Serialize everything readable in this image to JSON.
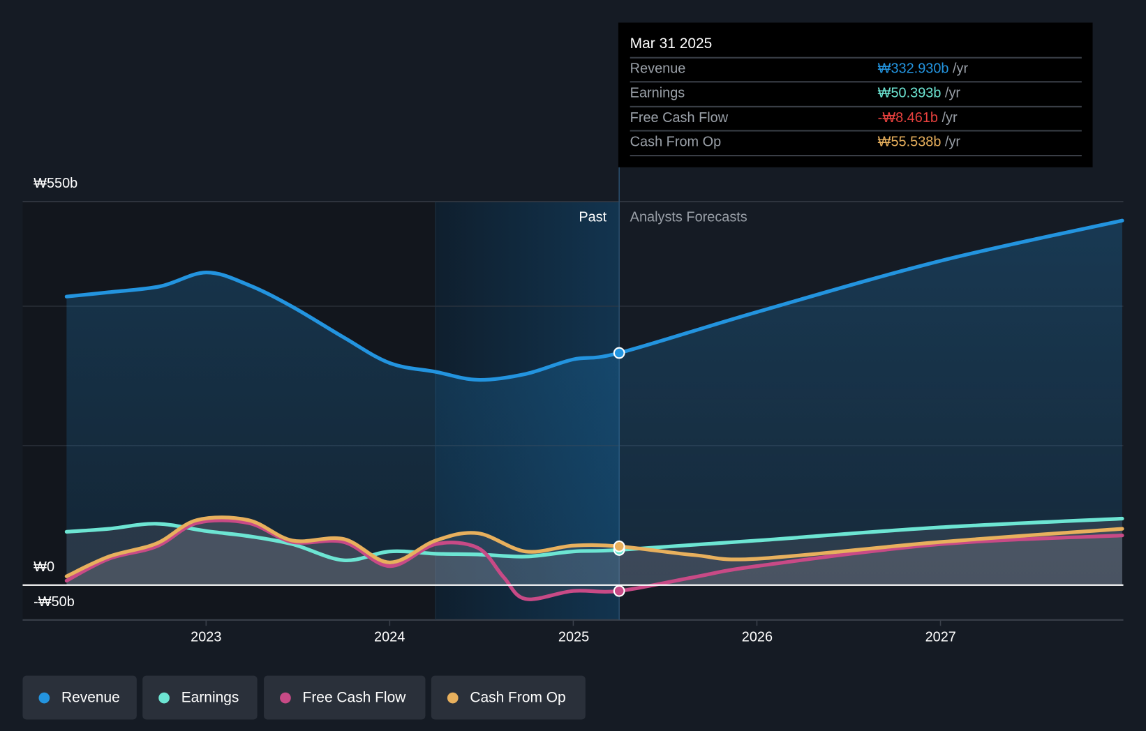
{
  "chart_data": {
    "type": "line",
    "title": "",
    "y_tick_labels": [
      "₩550b",
      "₩0",
      "-₩50b"
    ],
    "ylim": [
      -50,
      550
    ],
    "xlim": [
      2022.24,
      2027.99
    ],
    "x_tick_labels": [
      "2023",
      "2024",
      "2025",
      "2026",
      "2027"
    ],
    "x_ticks": [
      2023,
      2024,
      2025,
      2026,
      2027
    ],
    "past_label": "Past",
    "forecast_label": "Analysts Forecasts",
    "divider_x": 2025.25,
    "highlight_start": 2024.25,
    "units": "₩ billions /yr",
    "series": [
      {
        "name": "Revenue",
        "color": "#2394df",
        "x": [
          2022.24,
          2022.47,
          2022.75,
          2023,
          2023.23,
          2023.47,
          2023.75,
          2024,
          2024.25,
          2024.48,
          2024.74,
          2025,
          2025.25,
          2026,
          2027,
          2027.99
        ],
        "values": [
          413.8,
          420,
          428.5,
          448.4,
          430.6,
          399.2,
          355.2,
          318.5,
          305.9,
          294.4,
          302.8,
          323.7,
          332.93,
          391.6,
          465,
          522.8
        ]
      },
      {
        "name": "Earnings",
        "color": "#6de5d3",
        "x": [
          2022.24,
          2022.47,
          2022.73,
          2023,
          2023.23,
          2023.47,
          2023.75,
          2024,
          2024.25,
          2024.48,
          2024.74,
          2025,
          2025.25,
          2026,
          2027,
          2027.99
        ],
        "values": [
          76.5,
          80.7,
          88,
          77.5,
          70.2,
          58.7,
          35.6,
          48.2,
          45,
          44,
          40.9,
          48.2,
          50.393,
          63.9,
          82.8,
          95.3
        ]
      },
      {
        "name": "Free Cash Flow",
        "color": "#c84a86",
        "x": [
          2022.24,
          2022.47,
          2022.73,
          2022.95,
          2023.23,
          2023.47,
          2023.75,
          2024,
          2024.25,
          2024.48,
          2024.62,
          2024.74,
          2025,
          2025.25,
          2025.66,
          2026,
          2027,
          2027.99
        ],
        "values": [
          6.3,
          37.7,
          55.5,
          89,
          89,
          61.8,
          61.8,
          27.2,
          58.7,
          53.4,
          11.5,
          -19.9,
          -8.4,
          -8.461,
          11.5,
          27.2,
          58.7,
          71.2
        ]
      },
      {
        "name": "Cash From Op",
        "color": "#e8b05d",
        "x": [
          2022.24,
          2022.47,
          2022.73,
          2022.95,
          2023.23,
          2023.47,
          2023.75,
          2024,
          2024.25,
          2024.48,
          2024.74,
          2025,
          2025.25,
          2025.66,
          2026,
          2027,
          2027.99
        ],
        "values": [
          12.6,
          40.9,
          59.7,
          93.2,
          93.2,
          63.9,
          66,
          32.5,
          63.9,
          74.4,
          48.2,
          56.6,
          55.538,
          43,
          37.7,
          61.8,
          80.7
        ]
      }
    ]
  },
  "tooltip": {
    "date": "Mar 31 2025",
    "rows": [
      {
        "label": "Revenue",
        "value": "₩332.930b",
        "unit": " /yr",
        "color": "#2394df"
      },
      {
        "label": "Earnings",
        "value": "₩50.393b",
        "unit": " /yr",
        "color": "#6de5d3"
      },
      {
        "label": "Free Cash Flow",
        "value": "-₩8.461b",
        "unit": " /yr",
        "color": "#e8413e"
      },
      {
        "label": "Cash From Op",
        "value": "₩55.538b",
        "unit": " /yr",
        "color": "#e8b05d"
      }
    ]
  },
  "legend": [
    {
      "label": "Revenue",
      "color": "#2394df"
    },
    {
      "label": "Earnings",
      "color": "#6de5d3"
    },
    {
      "label": "Free Cash Flow",
      "color": "#c84a86"
    },
    {
      "label": "Cash From Op",
      "color": "#e8b05d"
    }
  ]
}
